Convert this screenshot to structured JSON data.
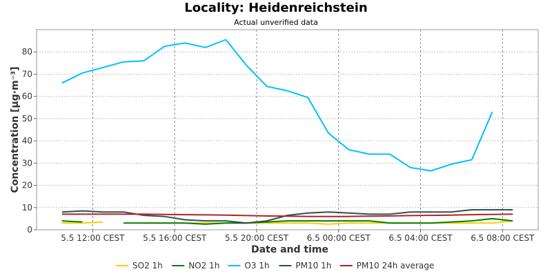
{
  "chart_data": {
    "type": "line",
    "title": "Locality: Heidenreichstein",
    "subtitle": "Actual unverified data",
    "xlabel": "Date and time",
    "ylabel": "Concentration [µg·m⁻³]",
    "ylim": [
      0,
      90
    ],
    "yticks": [
      0,
      10,
      20,
      30,
      40,
      50,
      60,
      70,
      80
    ],
    "xlim": [
      0,
      23
    ],
    "xticks": [
      {
        "x": 2,
        "label": "5.5 12:00 CEST"
      },
      {
        "x": 6,
        "label": "5.5 16:00 CEST"
      },
      {
        "x": 10,
        "label": "5.5 20:00 CEST"
      },
      {
        "x": 14,
        "label": "6.5 00:00 CEST"
      },
      {
        "x": 18,
        "label": "6.5 04:00 CEST"
      },
      {
        "x": 22,
        "label": "6.5 08:00 CEST"
      }
    ],
    "grid": true,
    "legend": "bottom",
    "x": [
      0.5,
      1.5,
      2.5,
      3.5,
      4.5,
      5.5,
      6.5,
      7.5,
      8.5,
      9.5,
      10.5,
      11.5,
      12.5,
      13.5,
      14.5,
      15.5,
      16.5,
      17.5,
      18.5,
      19.5,
      20.5,
      21.5,
      22.5
    ],
    "series": [
      {
        "name": "SO2 1h",
        "color": "#ffcc00",
        "values": [
          3,
          3,
          3.5,
          null,
          3,
          3,
          3,
          3,
          3,
          3,
          3,
          3,
          3,
          2.5,
          3,
          3,
          3,
          3,
          3,
          3,
          3,
          3,
          4
        ]
      },
      {
        "name": "NO2 1h",
        "color": "#008000",
        "values": [
          4,
          3.5,
          null,
          3,
          3,
          3,
          3,
          2.5,
          3,
          3,
          3.5,
          4,
          4,
          4,
          4,
          4,
          3,
          3,
          3,
          3.5,
          4,
          5,
          4
        ]
      },
      {
        "name": "O3 1h",
        "color": "#00bfff",
        "values": [
          66,
          70.5,
          73,
          75.5,
          76,
          82.5,
          84,
          82,
          85.5,
          74,
          64.5,
          62.5,
          59.5,
          43.5,
          36,
          34,
          34,
          28,
          26.5,
          29.5,
          31.5,
          53,
          null
        ]
      },
      {
        "name": "PM10 1h",
        "color": "#2f4f4f",
        "values": [
          8,
          8.5,
          8,
          8,
          6.5,
          6,
          4.5,
          4,
          4,
          3,
          4,
          6.5,
          7.5,
          8,
          7.5,
          7,
          7,
          8,
          8,
          8,
          9,
          9,
          9
        ]
      },
      {
        "name": "PM10 24h average",
        "color": "#b22222",
        "values": [
          7,
          7,
          7,
          7,
          7,
          6.9,
          6.8,
          6.7,
          6.6,
          6.4,
          6.2,
          6.1,
          6,
          6,
          6,
          6.1,
          6.2,
          6.4,
          6.5,
          6.6,
          6.8,
          6.9,
          7
        ]
      }
    ]
  }
}
